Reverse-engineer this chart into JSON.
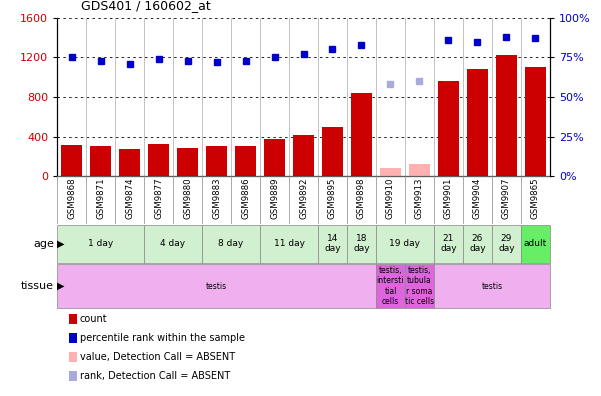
{
  "title": "GDS401 / 160602_at",
  "samples": [
    "GSM9868",
    "GSM9871",
    "GSM9874",
    "GSM9877",
    "GSM9880",
    "GSM9883",
    "GSM9886",
    "GSM9889",
    "GSM9892",
    "GSM9895",
    "GSM9898",
    "GSM9910",
    "GSM9913",
    "GSM9901",
    "GSM9904",
    "GSM9907",
    "GSM9865"
  ],
  "count_values": [
    320,
    305,
    270,
    330,
    290,
    310,
    305,
    380,
    415,
    500,
    840,
    0,
    0,
    960,
    1080,
    1220,
    1100
  ],
  "count_absent": [
    false,
    false,
    false,
    false,
    false,
    false,
    false,
    false,
    false,
    false,
    false,
    true,
    true,
    false,
    false,
    false,
    false
  ],
  "absent_count_values": [
    0,
    0,
    0,
    0,
    0,
    0,
    0,
    0,
    0,
    0,
    0,
    80,
    120,
    0,
    0,
    0,
    0
  ],
  "rank_values": [
    75,
    73,
    71,
    74,
    73,
    72,
    73,
    75,
    77,
    80,
    83,
    0,
    0,
    86,
    85,
    88,
    87
  ],
  "rank_absent": [
    false,
    false,
    false,
    false,
    false,
    false,
    false,
    false,
    false,
    false,
    false,
    true,
    true,
    false,
    false,
    false,
    false
  ],
  "absent_rank_values": [
    0,
    0,
    0,
    0,
    0,
    0,
    0,
    0,
    0,
    0,
    0,
    58,
    60,
    0,
    0,
    0,
    0
  ],
  "age_groups": [
    {
      "label": "1 day",
      "start": 0,
      "end": 3,
      "color": "#d0f0d0"
    },
    {
      "label": "4 day",
      "start": 3,
      "end": 5,
      "color": "#d0f0d0"
    },
    {
      "label": "8 day",
      "start": 5,
      "end": 7,
      "color": "#d0f0d0"
    },
    {
      "label": "11 day",
      "start": 7,
      "end": 9,
      "color": "#d0f0d0"
    },
    {
      "label": "14\nday",
      "start": 9,
      "end": 10,
      "color": "#d0f0d0"
    },
    {
      "label": "18\nday",
      "start": 10,
      "end": 11,
      "color": "#d0f0d0"
    },
    {
      "label": "19 day",
      "start": 11,
      "end": 13,
      "color": "#d0f0d0"
    },
    {
      "label": "21\nday",
      "start": 13,
      "end": 14,
      "color": "#d0f0d0"
    },
    {
      "label": "26\nday",
      "start": 14,
      "end": 15,
      "color": "#d0f0d0"
    },
    {
      "label": "29\nday",
      "start": 15,
      "end": 16,
      "color": "#d0f0d0"
    },
    {
      "label": "adult",
      "start": 16,
      "end": 17,
      "color": "#66ee66"
    }
  ],
  "tissue_groups": [
    {
      "label": "testis",
      "start": 0,
      "end": 11,
      "color": "#f0b0f0"
    },
    {
      "label": "testis,\nintersti\ntial\ncells",
      "start": 11,
      "end": 12,
      "color": "#dd66dd"
    },
    {
      "label": "testis,\ntubula\nr soma\ntic cells",
      "start": 12,
      "end": 13,
      "color": "#dd66dd"
    },
    {
      "label": "testis",
      "start": 13,
      "end": 17,
      "color": "#f0b0f0"
    }
  ],
  "ylim_left": [
    0,
    1600
  ],
  "ylim_right": [
    0,
    100
  ],
  "yticks_left": [
    0,
    400,
    800,
    1200,
    1600
  ],
  "yticks_right": [
    0,
    25,
    50,
    75,
    100
  ],
  "bar_color": "#cc0000",
  "absent_bar_color": "#ffb0b0",
  "rank_color": "#0000cc",
  "absent_rank_color": "#aaaadd",
  "bg_color": "#ffffff"
}
